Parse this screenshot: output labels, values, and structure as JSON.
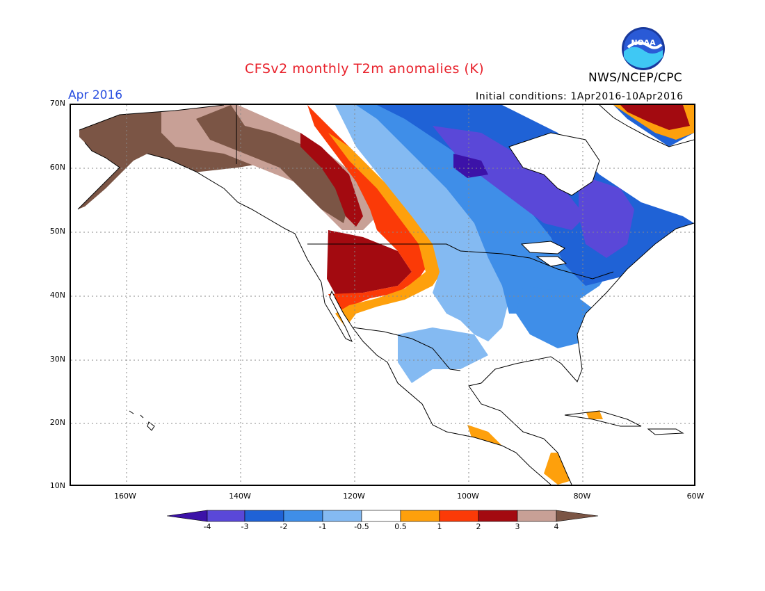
{
  "header": {
    "title": "CFSv2 monthly T2m anomalies (K)",
    "agency": "NWS/NCEP/CPC",
    "valid_month": "Apr 2016",
    "initial_conditions": "Initial conditions: 1Apr2016-10Apr2016",
    "logo_text": "NOAA"
  },
  "axes": {
    "lat_labels": [
      "70N",
      "60N",
      "50N",
      "40N",
      "30N",
      "20N",
      "10N"
    ],
    "lon_labels": [
      "160W",
      "140W",
      "120W",
      "100W",
      "80W",
      "60W"
    ]
  },
  "legend": {
    "labels": [
      "-4",
      "-3",
      "-2",
      "-1",
      "-0.5",
      "0.5",
      "1",
      "2",
      "3",
      "4"
    ],
    "colors": [
      "#3c12a8",
      "#5a48d8",
      "#1f62d6",
      "#3f8ee8",
      "#84baf2",
      "#ffffff",
      "#fea00c",
      "#fb3a07",
      "#a30a10",
      "#c8a096",
      "#7b5545"
    ]
  },
  "regions": {
    "alaska": "strong warm anomaly (>4 K)",
    "western_us": "warm anomaly (2 to 4 K)",
    "central_canada": "cold anomaly (-2 to -4 K)",
    "eastern_us": "cold anomaly (-0.5 to -2 K)"
  }
}
